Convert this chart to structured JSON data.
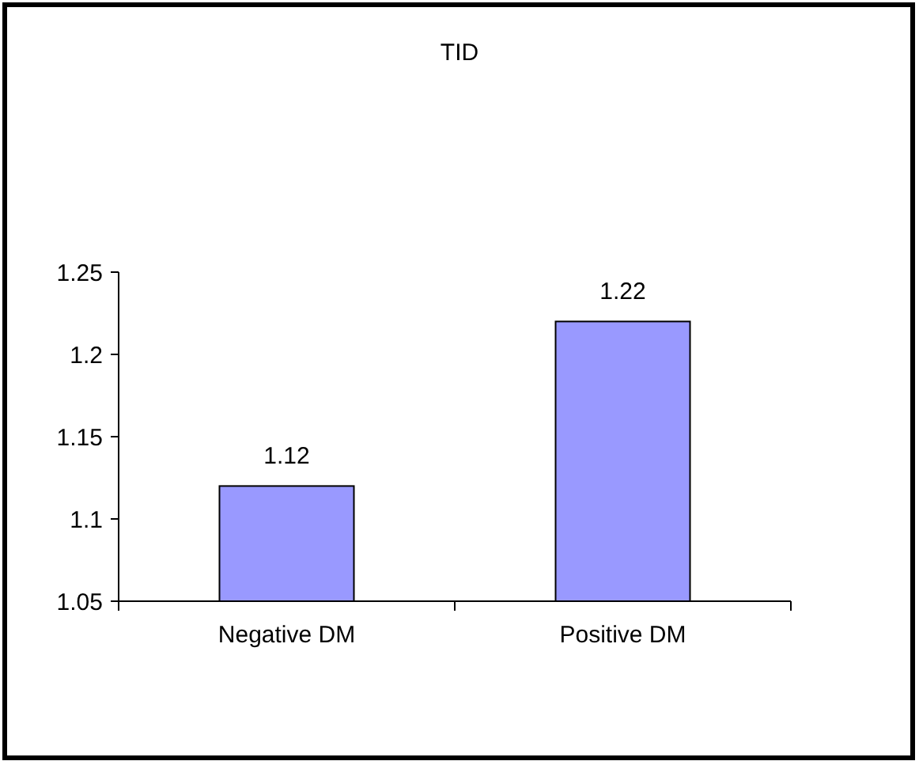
{
  "chart_data": {
    "type": "bar",
    "title": "TID",
    "categories": [
      "Negative DM",
      "Positive DM"
    ],
    "values": [
      1.12,
      1.22
    ],
    "color": "#9999ff",
    "ylim": [
      1.05,
      1.25
    ],
    "yticks": [
      1.05,
      1.1,
      1.15,
      1.2,
      1.25
    ],
    "data_labels": true
  }
}
